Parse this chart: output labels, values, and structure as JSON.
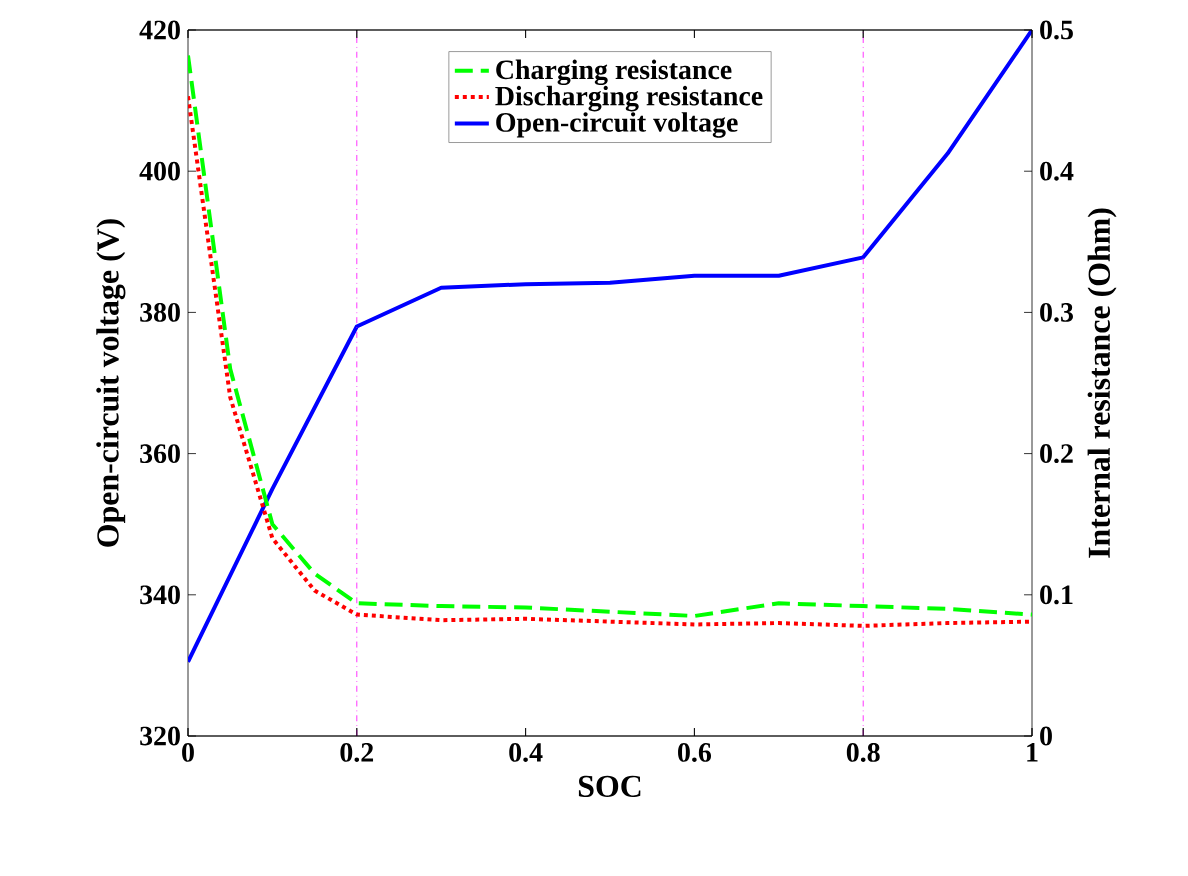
{
  "chart_data": {
    "type": "line",
    "xlabel": "SOC",
    "ylabel": "Open-circuit voltage (V)",
    "y2label": "Internal resistance (Ohm)",
    "xlim": [
      0,
      1
    ],
    "xticks": [
      0,
      0.2,
      0.4,
      0.6,
      0.8,
      1
    ],
    "ylim": [
      320,
      420
    ],
    "yticks": [
      320,
      340,
      360,
      380,
      400,
      420
    ],
    "y2lim": [
      0,
      0.5
    ],
    "y2ticks": [
      0,
      0.1,
      0.2,
      0.3,
      0.4,
      0.5
    ],
    "legend": "top",
    "grid": false,
    "marker": "none",
    "series": [
      {
        "name": "Charging resistance",
        "color": "#00ff00",
        "line_style": "dashed",
        "axis": "y2",
        "x": [
          0,
          0.05,
          0.1,
          0.15,
          0.2,
          0.3,
          0.4,
          0.5,
          0.6,
          0.7,
          0.8,
          0.9,
          1
        ],
        "values": [
          0.482,
          0.26,
          0.15,
          0.115,
          0.094,
          0.092,
          0.091,
          0.088,
          0.085,
          0.094,
          0.092,
          0.09,
          0.086
        ]
      },
      {
        "name": "Discharging resistance",
        "color": "#ff0000",
        "line_style": "dotted",
        "axis": "y2",
        "x": [
          0,
          0.05,
          0.1,
          0.15,
          0.2,
          0.3,
          0.4,
          0.5,
          0.6,
          0.7,
          0.8,
          0.9,
          1
        ],
        "values": [
          0.453,
          0.24,
          0.14,
          0.103,
          0.086,
          0.082,
          0.083,
          0.081,
          0.079,
          0.08,
          0.078,
          0.08,
          0.081
        ]
      },
      {
        "name": "Open-circuit voltage",
        "color": "#0000ff",
        "line_style": "solid",
        "axis": "y",
        "x": [
          0,
          0.1,
          0.2,
          0.3,
          0.4,
          0.5,
          0.6,
          0.7,
          0.8,
          0.9,
          1
        ],
        "values": [
          330.5,
          355,
          378,
          383.5,
          384,
          384.2,
          385.2,
          385.2,
          387.8,
          402.5,
          420
        ]
      }
    ],
    "ref_lines": [
      {
        "axis": "x",
        "value": 0.2,
        "color": "#ff00ff",
        "line_style": "dashdot"
      },
      {
        "axis": "x",
        "value": 0.8,
        "color": "#ff00ff",
        "line_style": "dashdot"
      }
    ]
  }
}
